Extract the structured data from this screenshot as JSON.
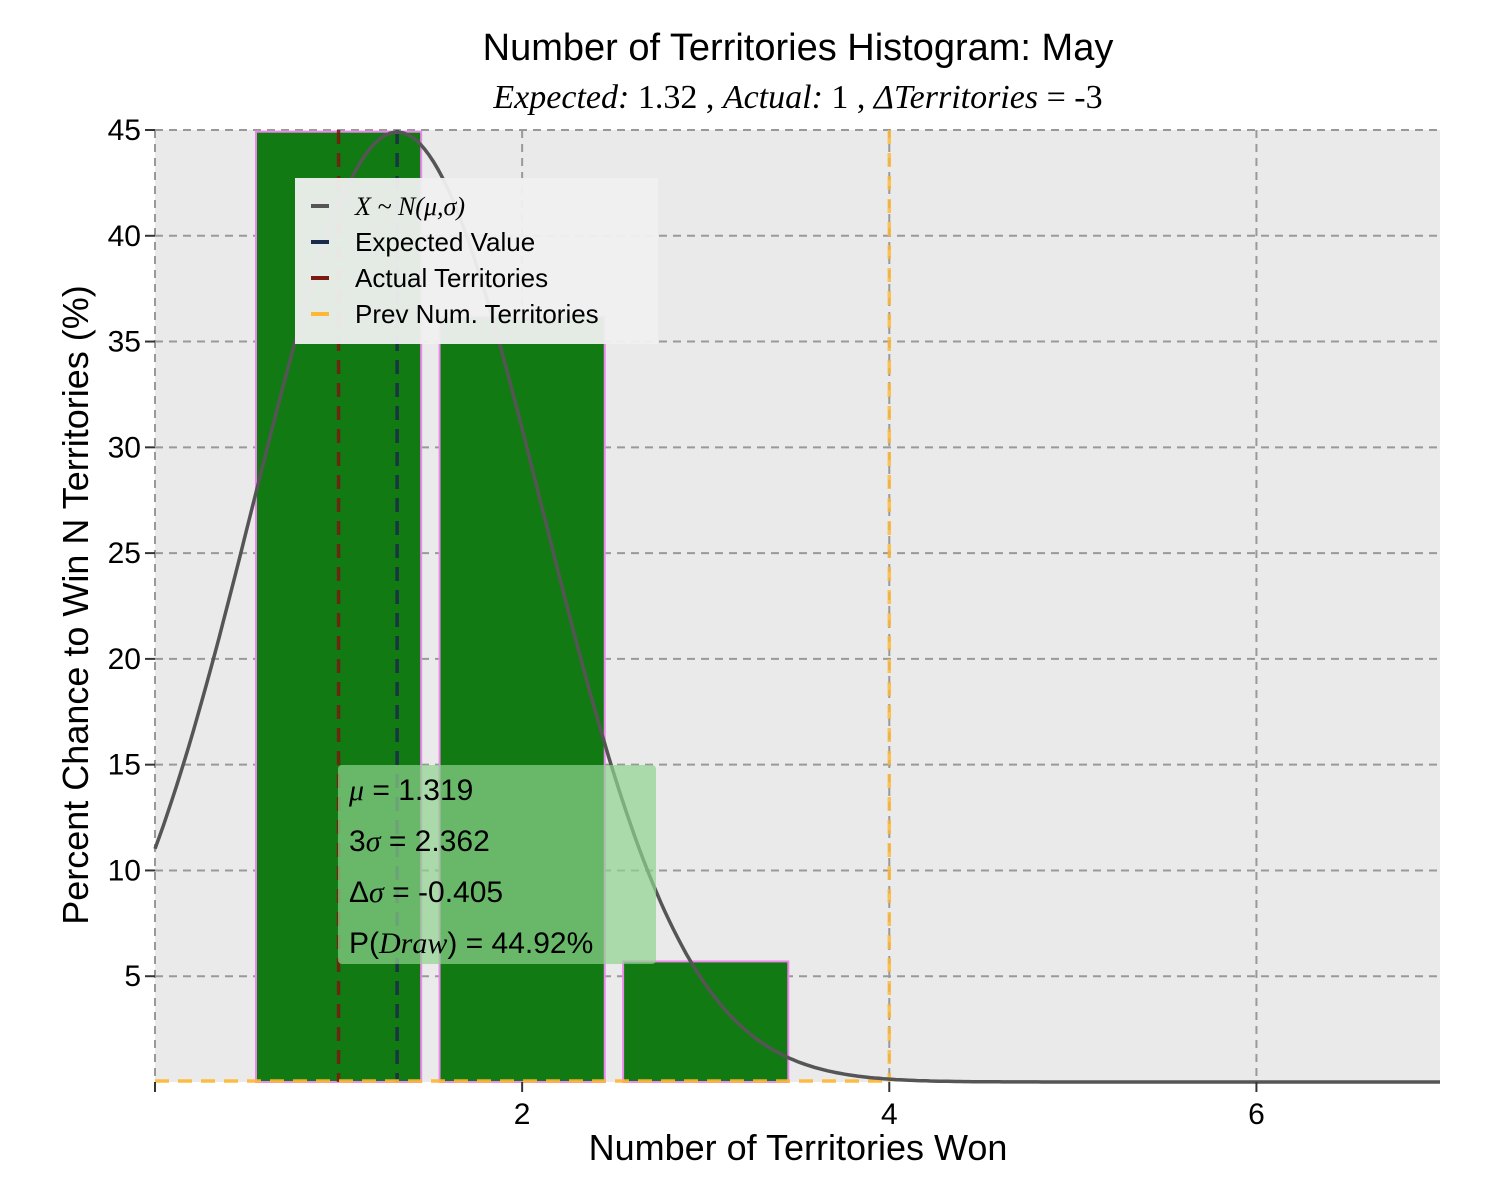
{
  "chart_data": {
    "type": "bar",
    "title": "Number of Territories Histogram: May",
    "subtitle": {
      "expected_label": "Expected:",
      "expected_value": "1.32",
      "actual_label": "Actual:",
      "actual_value": "1",
      "delta_label": "ΔTerritories",
      "delta_value": "= -3"
    },
    "xlabel": "Number of Territories Won",
    "ylabel": "Percent Chance to Win N Territories (%)",
    "xlim": [
      0,
      7
    ],
    "ylim": [
      0,
      45
    ],
    "x_ticks": [
      2,
      4,
      6
    ],
    "y_ticks": [
      5,
      10,
      15,
      20,
      25,
      30,
      35,
      40,
      45
    ],
    "grid": true,
    "bars": [
      {
        "x": 1,
        "value": 44.92
      },
      {
        "x": 2,
        "value": 36.2
      },
      {
        "x": 3,
        "value": 5.7
      }
    ],
    "bar_width": 0.9,
    "normal_curve": {
      "mu": 1.319,
      "sigma": 0.787,
      "peak": 44.9
    },
    "lines": {
      "expected_value": 1.319,
      "actual_territories": 1,
      "prev_num_territories": 4
    },
    "legend": {
      "placement": "upper-left",
      "entries": [
        {
          "label": "X ~ N(μ,σ)",
          "color": "#555555"
        },
        {
          "label": "Expected Value",
          "color": "#1a2a4a"
        },
        {
          "label": "Actual Territories",
          "color": "#7a1a10"
        },
        {
          "label": "Prev Num. Territories",
          "color": "#ffb833"
        }
      ]
    },
    "stats": [
      {
        "sym": "μ",
        "text": " = 1.319"
      },
      {
        "prefix": "3",
        "sym": "σ",
        "text": " = 2.362"
      },
      {
        "prefix": "Δ",
        "sym": "σ",
        "text": " = -0.405"
      },
      {
        "prefix": "P(",
        "sym": "Draw",
        "text": ") = 44.92%"
      }
    ],
    "colors": {
      "bar_fill": "#127a12",
      "bar_edge": "#ee88ee",
      "plot_bg": "#eaeaea",
      "grid": "#999999",
      "curve": "#555555",
      "stats_box": "#8fd38f"
    }
  }
}
